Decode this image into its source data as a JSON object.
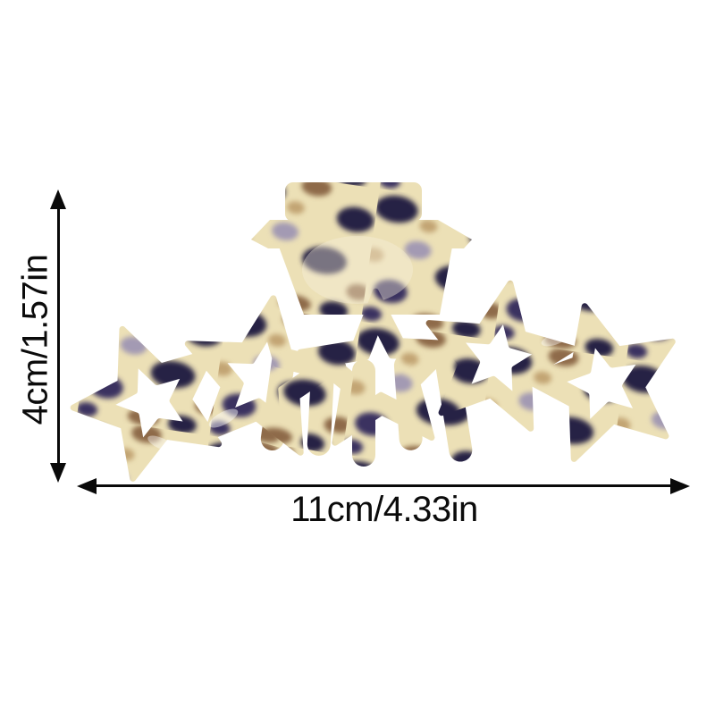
{
  "page": {
    "background_color": "#ffffff"
  },
  "dimensions": {
    "height_label": "4cm/1.57in",
    "width_label": "11cm/4.33in",
    "arrow_color": "#0a0a0a",
    "text_color": "#0b0b0b"
  },
  "product": {
    "kind": "star hair claw clip",
    "pattern": "leopard tortoiseshell acetate",
    "star_count": 5,
    "colors": {
      "base": "#ECE0B6",
      "base_light": "#F7F0DC",
      "dark": "#262044",
      "dark2": "#3A3260",
      "brown": "#8E6B4A",
      "tan": "#C2A473",
      "grey": "#A39AB3"
    }
  }
}
